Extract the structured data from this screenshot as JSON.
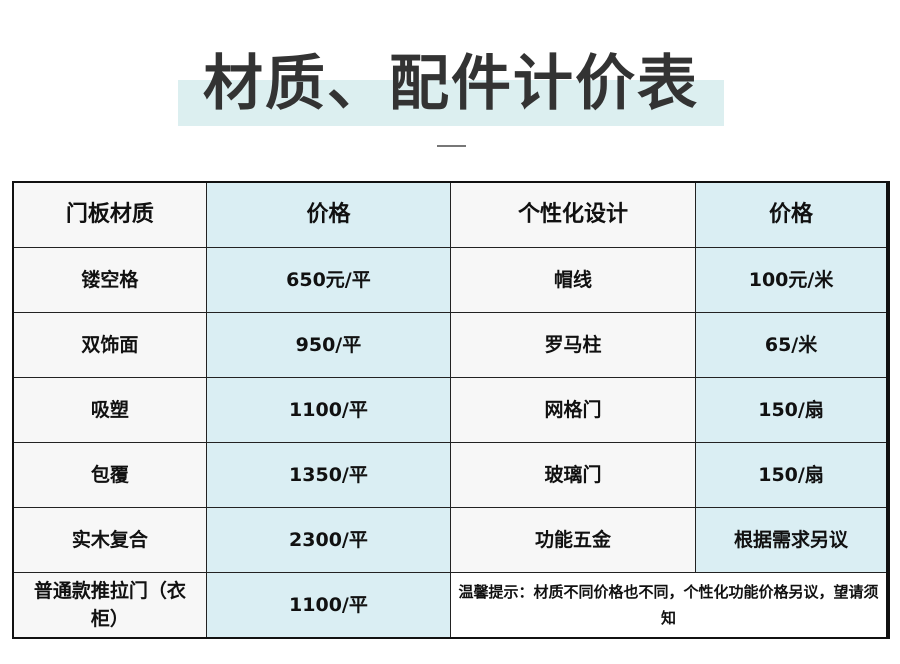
{
  "title": "材质、配件计价表",
  "headers": [
    "门板材质",
    "价格",
    "个性化设计",
    "价格"
  ],
  "rows": [
    [
      "镂空格",
      "650元/平",
      "帽线",
      "100元/米"
    ],
    [
      "双饰面",
      "950/平",
      "罗马柱",
      "65/米"
    ],
    [
      "吸塑",
      "1100/平",
      "网格门",
      "150/扇"
    ],
    [
      "包覆",
      "1350/平",
      "玻璃门",
      "150/扇"
    ],
    [
      "实木复合",
      "2300/平",
      "功能五金",
      "根据需求另议"
    ]
  ],
  "last_row": {
    "material": "普通款推拉门（衣柜）",
    "price": "1100/平",
    "note": "温馨提示：材质不同价格也不同，个性化功能价格另议，望请须知"
  },
  "colors": {
    "highlight": "#dceff0",
    "price_column": "#daeef3",
    "text_column": "#f7f7f7"
  }
}
